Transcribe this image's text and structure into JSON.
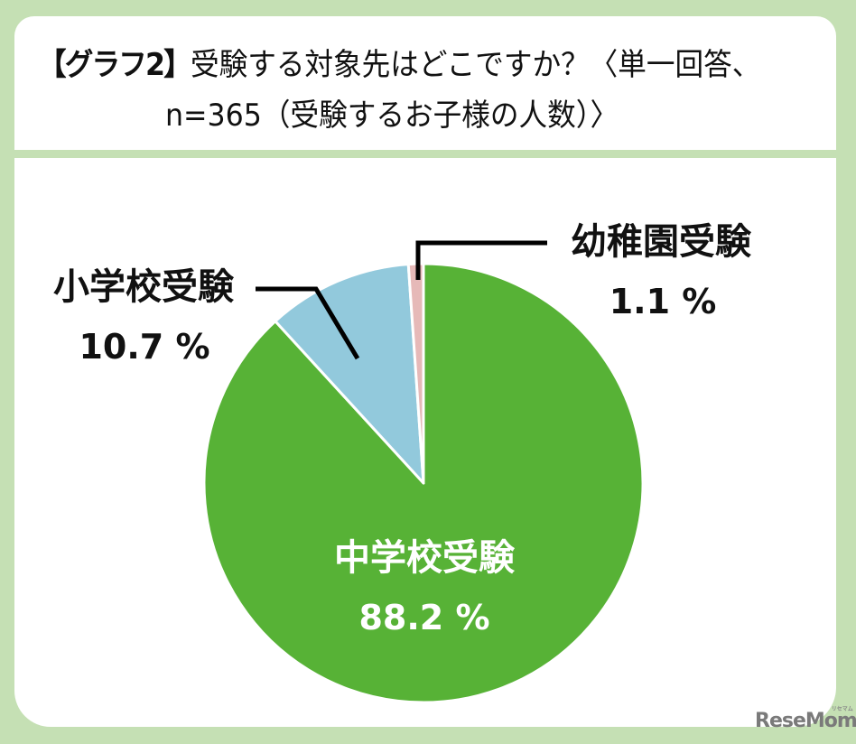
{
  "header": {
    "tag": "【グラフ2】",
    "line1": "受験する対象先はどこですか？〈単一回答、",
    "line2": "n=365（受験するお子様の人数）〉"
  },
  "colors": {
    "background_frame": "#c5e0b4",
    "junior_high": "#57b236",
    "elementary": "#92c9dc",
    "kindergarten": "#e6b9b8",
    "leader_line": "#000000"
  },
  "labels": {
    "junior_high": {
      "name": "中学校受験",
      "value": "88.2 %"
    },
    "elementary": {
      "name": "小学校受験",
      "value": "10.7 %"
    },
    "kindergarten": {
      "name": "幼稚園受験",
      "value": "1.1 %"
    }
  },
  "watermark": {
    "text": "ReseMom",
    "sub": "リセマム"
  },
  "chart_data": {
    "type": "pie",
    "title": "【グラフ2】受験する対象先はどこですか？〈単一回答、n=365（受験するお子様の人数）〉",
    "categories": [
      "中学校受験",
      "小学校受験",
      "幼稚園受験"
    ],
    "values": [
      88.2,
      10.7,
      1.1
    ],
    "unit": "%",
    "n": 365,
    "start_angle": "12 o'clock, clockwise",
    "colors": [
      "#57b236",
      "#92c9dc",
      "#e6b9b8"
    ],
    "legend": "none (direct labels with leader lines)"
  }
}
